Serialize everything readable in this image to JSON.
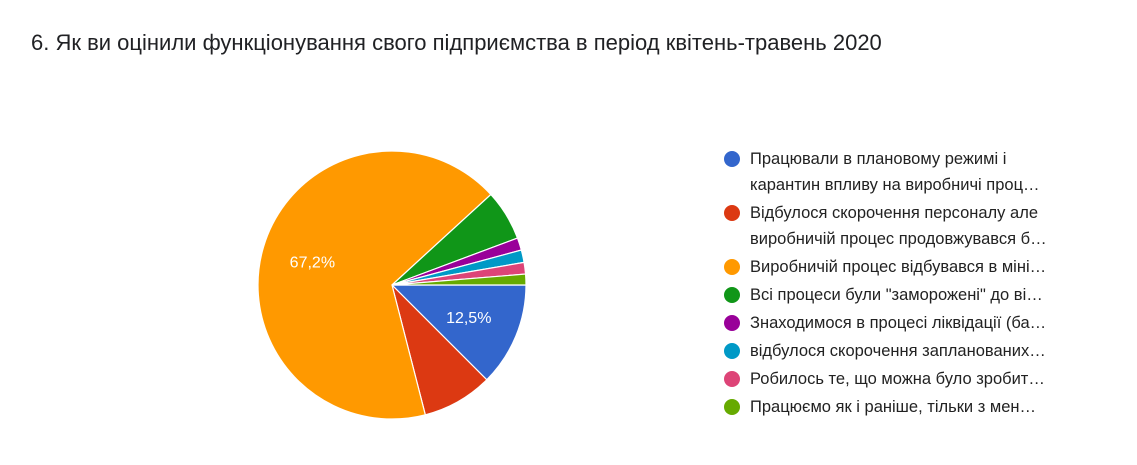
{
  "chart_data": {
    "type": "pie",
    "title": "6. Як ви оцінили функціонування свого підприємства в період квітень-травень 2020",
    "legend_position": "right",
    "slices": [
      {
        "label": "Працювали в плановому режимі і\nкарантин впливу на виробничі проц…",
        "value": 12.5,
        "color": "#3366cc",
        "data_label": "12,5%"
      },
      {
        "label": "Відбулося скорочення персоналу але\nвиробничій процес продовжувався б…",
        "value": 8.5,
        "color": "#dc3912",
        "data_label": ""
      },
      {
        "label": "Виробничій процес відбувався в міні…",
        "value": 67.2,
        "color": "#ff9900",
        "data_label": "67,2%"
      },
      {
        "label": "Всі процеси були \"заморожені\" до ві…",
        "value": 6.1,
        "color": "#109618",
        "data_label": ""
      },
      {
        "label": "Знаходимося в процесі ліквідації (ба…",
        "value": 1.5,
        "color": "#990099",
        "data_label": ""
      },
      {
        "label": "відбулося скорочення запланованих…",
        "value": 1.5,
        "color": "#0099c6",
        "data_label": ""
      },
      {
        "label": "Робилось те, що можна було зробит…",
        "value": 1.4,
        "color": "#dd4477",
        "data_label": ""
      },
      {
        "label": "Працюємо як і раніше, тільки з мен…",
        "value": 1.3,
        "color": "#66aa00",
        "data_label": ""
      }
    ]
  }
}
